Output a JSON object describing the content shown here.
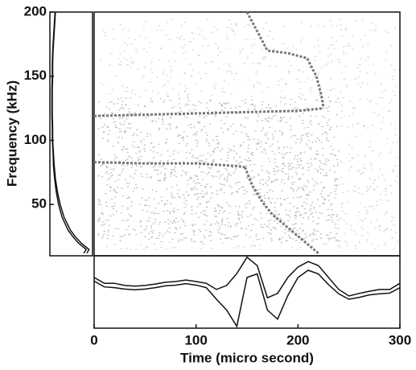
{
  "chart_data": {
    "type": "spectrogram",
    "xlabel": "Time (micro second)",
    "ylabel": "Frequency (kHz)",
    "xlim": [
      0,
      300
    ],
    "xticks": [
      0,
      100,
      200,
      300
    ],
    "ylim": [
      10,
      200
    ],
    "yticks": [
      50,
      100,
      150,
      200
    ],
    "color": "#777777",
    "ridges": [
      {
        "time": [
          0,
          50,
          100,
          150,
          200,
          225
        ],
        "frequency": [
          119,
          120,
          121,
          122,
          123,
          125
        ]
      },
      {
        "time": [
          150,
          160,
          170,
          190,
          209,
          218,
          223,
          225
        ],
        "frequency": [
          200,
          185,
          170,
          168,
          164,
          150,
          135,
          125
        ]
      },
      {
        "time": [
          0,
          50,
          100,
          140,
          148
        ],
        "frequency": [
          83,
          82,
          82,
          80,
          79
        ]
      },
      {
        "time": [
          148,
          155,
          165,
          175,
          190,
          205,
          220
        ],
        "frequency": [
          79,
          65,
          52,
          42,
          32,
          22,
          12
        ]
      }
    ],
    "spectrum": {
      "frequency": [
        12,
        15,
        20,
        25,
        30,
        40,
        50,
        60,
        70,
        80,
        90,
        100,
        110,
        120,
        130,
        140,
        150,
        160,
        170,
        180,
        190,
        200
      ],
      "amplitude": [
        0.9,
        0.95,
        0.75,
        0.6,
        0.48,
        0.32,
        0.22,
        0.15,
        0.1,
        0.07,
        0.05,
        0.03,
        0.03,
        0.02,
        0.02,
        0.02,
        0.03,
        0.03,
        0.04,
        0.06,
        0.08,
        0.1
      ],
      "amplitude2": [
        0.82,
        0.88,
        0.68,
        0.54,
        0.42,
        0.27,
        0.18,
        0.12,
        0.08,
        0.05,
        0.04,
        0.02,
        0.02,
        0.01,
        0.01,
        0.01,
        0.02,
        0.02,
        0.03,
        0.05,
        0.07,
        0.09
      ]
    },
    "waveform": {
      "time": [
        0,
        10,
        20,
        30,
        40,
        50,
        60,
        70,
        80,
        90,
        100,
        110,
        120,
        130,
        140,
        150,
        160,
        170,
        180,
        190,
        200,
        210,
        220,
        230,
        240,
        250,
        260,
        270,
        280,
        290,
        300
      ],
      "upper": [
        0.4,
        0.24,
        0.24,
        0.18,
        0.16,
        0.18,
        0.22,
        0.27,
        0.29,
        0.33,
        0.29,
        0.24,
        0.07,
        0.18,
        0.51,
        0.96,
        0.73,
        -0.16,
        -0.04,
        0.4,
        0.69,
        0.84,
        0.73,
        0.4,
        0.07,
        -0.11,
        -0.04,
        0.02,
        0.07,
        0.07,
        0.24
      ],
      "lower": [
        0.3,
        0.14,
        0.12,
        0.08,
        0.06,
        0.08,
        0.12,
        0.17,
        0.19,
        0.23,
        0.19,
        0.12,
        -0.2,
        -0.5,
        -0.95,
        0.4,
        0.5,
        -0.5,
        -0.75,
        -0.1,
        0.4,
        0.6,
        0.5,
        0.2,
        -0.05,
        -0.2,
        -0.15,
        -0.08,
        -0.05,
        -0.03,
        0.12
      ]
    }
  }
}
